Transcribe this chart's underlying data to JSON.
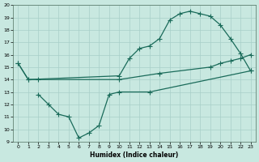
{
  "xlabel": "Humidex (Indice chaleur)",
  "bg_color": "#c8e8e0",
  "grid_color": "#a8cfc8",
  "line_color": "#1a6b5a",
  "xlim": [
    -0.5,
    23.5
  ],
  "ylim": [
    9,
    20
  ],
  "xticks": [
    0,
    1,
    2,
    3,
    4,
    5,
    6,
    7,
    8,
    9,
    10,
    11,
    12,
    13,
    14,
    15,
    16,
    17,
    18,
    19,
    20,
    21,
    22,
    23
  ],
  "yticks": [
    9,
    10,
    11,
    12,
    13,
    14,
    15,
    16,
    17,
    18,
    19,
    20
  ],
  "line1_x": [
    0,
    1,
    10,
    11,
    12,
    13,
    14,
    15,
    16,
    17,
    18,
    19,
    20,
    21,
    22,
    23
  ],
  "line1_y": [
    15.3,
    14.0,
    14.3,
    15.7,
    16.5,
    16.7,
    17.3,
    18.8,
    19.3,
    19.5,
    19.3,
    19.1,
    18.4,
    17.3,
    16.1,
    14.7
  ],
  "line2_x": [
    0,
    1,
    2,
    10,
    14,
    19,
    20,
    21,
    22,
    23
  ],
  "line2_y": [
    15.3,
    14.0,
    14.0,
    14.0,
    14.5,
    15.0,
    15.3,
    15.5,
    15.7,
    16.0
  ],
  "line3_x": [
    2,
    3,
    4,
    5,
    6,
    7,
    8,
    9,
    10,
    13,
    23
  ],
  "line3_y": [
    12.8,
    12.0,
    11.2,
    11.0,
    9.3,
    9.7,
    10.3,
    12.8,
    13.0,
    13.0,
    14.7
  ]
}
